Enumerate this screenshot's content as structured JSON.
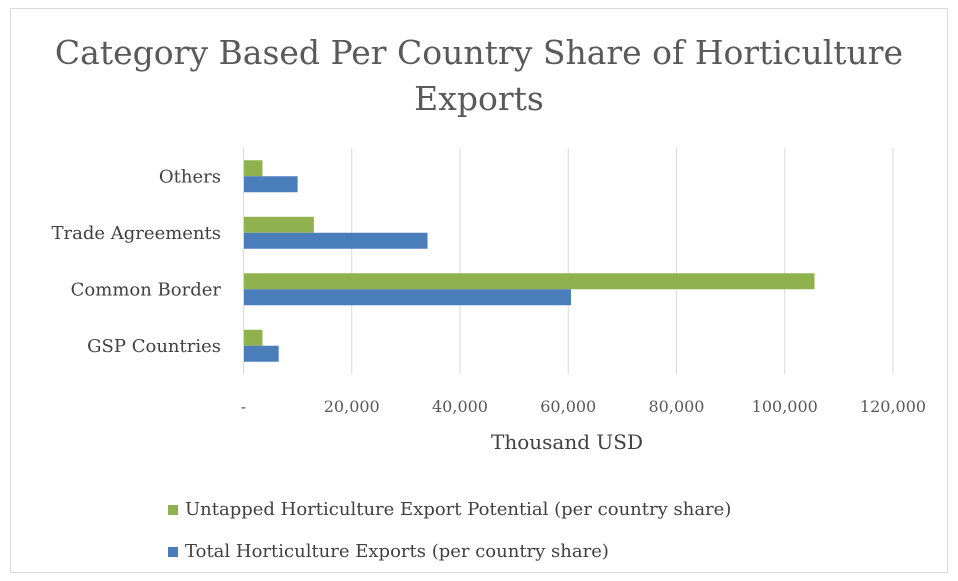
{
  "chart_data": {
    "type": "bar",
    "orientation": "horizontal",
    "title": "Category Based Per Country Share of Horticulture Exports",
    "categories": [
      "Others",
      "Trade Agreements",
      "Common Border",
      "GSP Countries"
    ],
    "series": [
      {
        "name": "Untapped Horticulture Export Potential (per country share)",
        "color": "#8fb24e",
        "values": [
          3500,
          13000,
          105500,
          3500
        ]
      },
      {
        "name": "Total Horticulture Exports (per country share)",
        "color": "#4a7ebb",
        "values": [
          10000,
          34000,
          60500,
          6500
        ]
      }
    ],
    "xlabel": "Thousand USD",
    "xlim": [
      0,
      120000
    ],
    "xticks": [
      0,
      20000,
      40000,
      60000,
      80000,
      100000,
      120000
    ],
    "xtick_labels": [
      "-",
      "20,000",
      "40,000",
      "60,000",
      "80,000",
      "100,000",
      "120,000"
    ],
    "grid": true,
    "legend_position": "bottom"
  }
}
